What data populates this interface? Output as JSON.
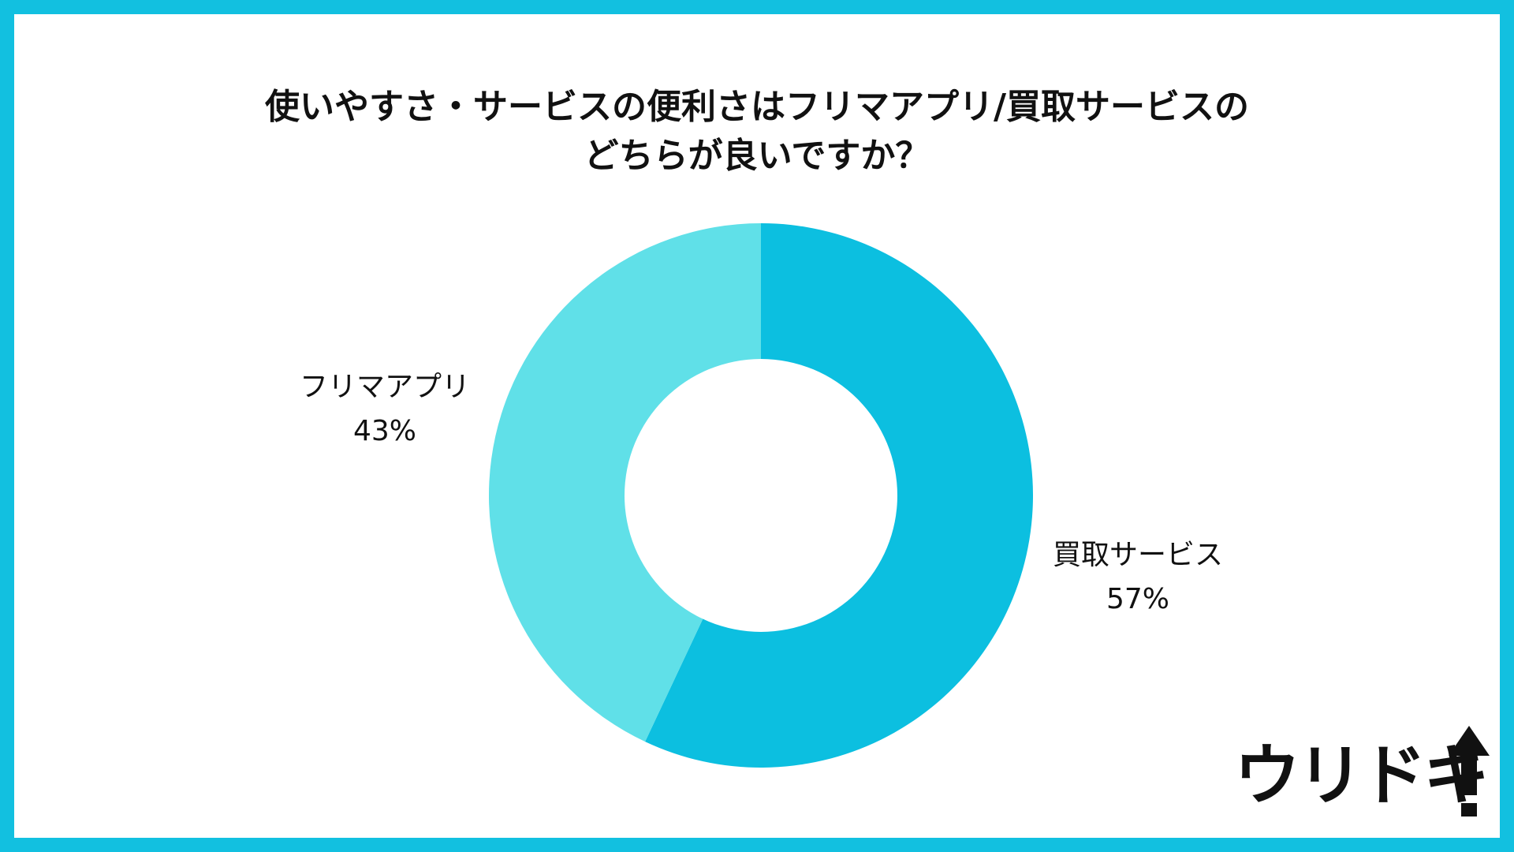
{
  "chart_data": {
    "type": "pie",
    "title_lines": [
      "使いやすさ・サービスの便利さはフリマアプリ/買取サービスの",
      "どちらが良いですか？"
    ],
    "slices": [
      {
        "label": "買取サービス",
        "value": 57,
        "value_label": "57%",
        "color": "#0CBFE0"
      },
      {
        "label": "フリマアプリ",
        "value": 43,
        "value_label": "43%",
        "color": "#60E0E8"
      }
    ],
    "start_angle_deg": 0,
    "direction": "clockwise",
    "donut": true
  },
  "colors": {
    "frame": "#12C0E0",
    "background": "#FFFFFF",
    "text": "#111111"
  },
  "logo": {
    "text": "ウリドキ",
    "icon": "up-arrow-icon"
  }
}
